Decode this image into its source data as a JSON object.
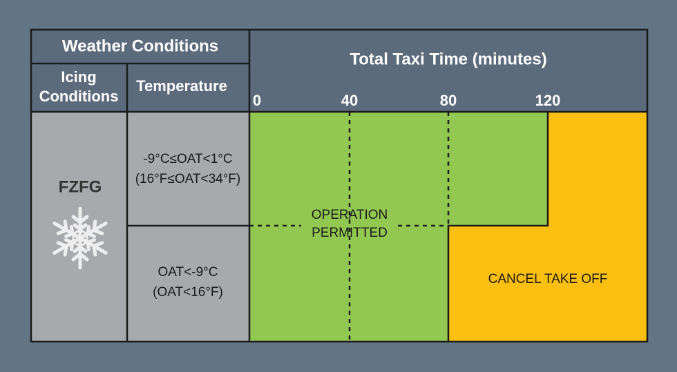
{
  "header": {
    "weather_conditions": "Weather Conditions",
    "icing_conditions": [
      "Icing",
      "Conditions"
    ],
    "temperature": "Temperature",
    "total_taxi_time": "Total Taxi Time (minutes)"
  },
  "time_ticks": [
    0,
    40,
    80,
    120
  ],
  "icing": "FZFG",
  "rows": [
    {
      "temperature": [
        "-9°C≤OAT<1°C",
        "(16°F≤OAT<34°F)"
      ]
    },
    {
      "temperature": [
        "OAT<-9°C",
        "(OAT<16°F)"
      ]
    }
  ],
  "regions": {
    "operation_permitted": [
      "OPERATION",
      "PERMITTED"
    ],
    "cancel_take_off": "CANCEL TAKE OFF"
  }
}
